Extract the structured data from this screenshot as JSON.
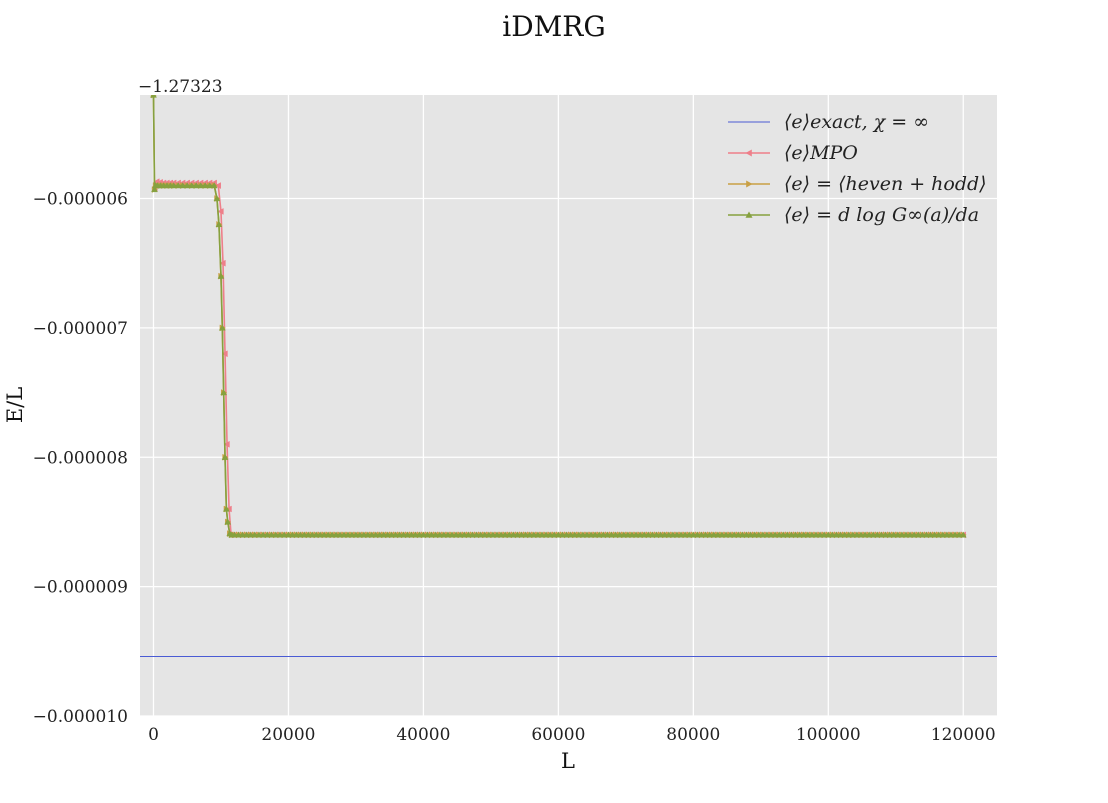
{
  "chart_data": {
    "type": "line",
    "title": "iDMRG",
    "xlabel": "L",
    "ylabel": "E/L",
    "y_offset_label": "−1.27323",
    "xlim": [
      -2000,
      125000
    ],
    "ylim": [
      -1e-05,
      -5.2e-06
    ],
    "grid": true,
    "legend_position": "top-right",
    "x_ticks": [
      0,
      20000,
      40000,
      60000,
      80000,
      100000,
      120000
    ],
    "x_tick_labels": [
      "0",
      "20000",
      "40000",
      "60000",
      "80000",
      "100000",
      "120000"
    ],
    "y_ticks": [
      -6e-06,
      -7e-06,
      -8e-06,
      -9e-06,
      -1e-05
    ],
    "y_tick_labels": [
      "−0.000006",
      "−0.000007",
      "−0.000008",
      "−0.000009",
      "−0.000010"
    ],
    "colors": {
      "exact": "#4a5bd4",
      "mpo": "#ee7f8a",
      "heven_hodd": "#c9a045",
      "dlog": "#86a13f",
      "plot_bg": "#e5e5e5",
      "grid": "#ffffff"
    },
    "series": [
      {
        "name": "⟨e⟩exact, χ = ∞",
        "key": "exact",
        "marker": "none",
        "x": [
          -2000,
          125000
        ],
        "y": [
          -9.54e-06,
          -9.54e-06
        ]
      },
      {
        "name": "⟨e⟩MPO",
        "key": "mpo",
        "marker": "triangle-left",
        "x": [
          200,
          500,
          1500,
          3000,
          5000,
          7000,
          9000,
          9600,
          10000,
          10300,
          10600,
          10900,
          11200,
          11500,
          12000,
          15000,
          20000,
          30000,
          40000,
          60000,
          80000,
          100000,
          120000
        ],
        "y": [
          -5.92e-06,
          -5.87e-06,
          -5.88e-06,
          -5.88e-06,
          -5.88e-06,
          -5.88e-06,
          -5.88e-06,
          -5.9e-06,
          -6.1e-06,
          -6.5e-06,
          -7.2e-06,
          -7.9e-06,
          -8.4e-06,
          -8.6e-06,
          -8.6e-06,
          -8.6e-06,
          -8.6e-06,
          -8.6e-06,
          -8.6e-06,
          -8.6e-06,
          -8.6e-06,
          -8.6e-06,
          -8.6e-06
        ]
      },
      {
        "name": "⟨e⟩ = ⟨heven + hodd⟩",
        "key": "heven_hodd",
        "marker": "triangle-right",
        "x": [
          0,
          150,
          300,
          600,
          1500,
          3000,
          5000,
          7000,
          9000,
          9400,
          9700,
          10000,
          10200,
          10400,
          10600,
          10800,
          11000,
          11300,
          11600,
          12000,
          15000,
          20000,
          30000,
          40000,
          60000,
          80000,
          100000,
          120000
        ],
        "y": [
          -5.2e-06,
          -5.93e-06,
          -5.9e-06,
          -5.9e-06,
          -5.9e-06,
          -5.9e-06,
          -5.9e-06,
          -5.9e-06,
          -5.9e-06,
          -6e-06,
          -6.2e-06,
          -6.6e-06,
          -7e-06,
          -7.5e-06,
          -8e-06,
          -8.4e-06,
          -8.5e-06,
          -8.59e-06,
          -8.6e-06,
          -8.6e-06,
          -8.6e-06,
          -8.6e-06,
          -8.6e-06,
          -8.6e-06,
          -8.6e-06,
          -8.6e-06,
          -8.6e-06,
          -8.6e-06
        ]
      },
      {
        "name": "⟨e⟩ = d log G∞(a)/da",
        "key": "dlog",
        "marker": "triangle-up",
        "x": [
          0,
          150,
          300,
          600,
          1500,
          3000,
          5000,
          7000,
          9000,
          9400,
          9700,
          10000,
          10200,
          10400,
          10600,
          10800,
          11000,
          11300,
          11600,
          12000,
          15000,
          20000,
          30000,
          40000,
          60000,
          80000,
          100000,
          120000
        ],
        "y": [
          -5.2e-06,
          -5.93e-06,
          -5.9e-06,
          -5.9e-06,
          -5.9e-06,
          -5.9e-06,
          -5.9e-06,
          -5.9e-06,
          -5.9e-06,
          -6e-06,
          -6.2e-06,
          -6.6e-06,
          -7e-06,
          -7.5e-06,
          -8e-06,
          -8.4e-06,
          -8.5e-06,
          -8.59e-06,
          -8.6e-06,
          -8.6e-06,
          -8.6e-06,
          -8.6e-06,
          -8.6e-06,
          -8.6e-06,
          -8.6e-06,
          -8.6e-06,
          -8.6e-06,
          -8.6e-06
        ]
      }
    ]
  }
}
